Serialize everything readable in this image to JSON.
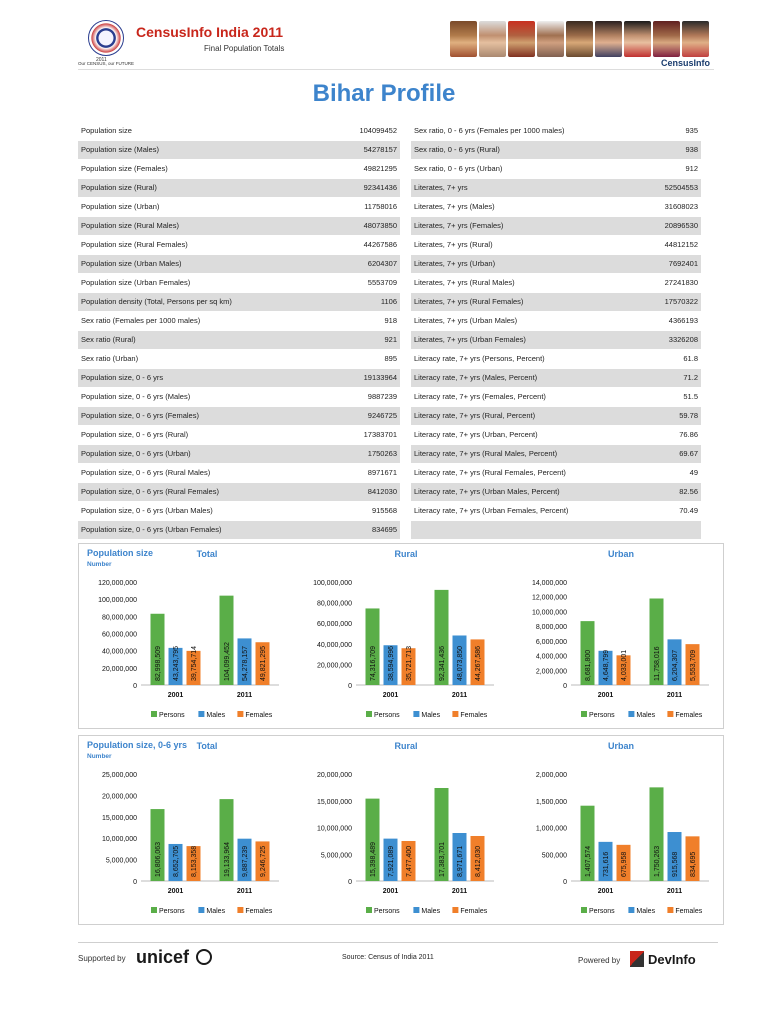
{
  "header": {
    "brand_title": "CensusInfo India 2011",
    "brand_subtitle": "Final Population Totals",
    "seal_year": "2011",
    "seal_tagline": "Our CENSUS, our FUTURE",
    "brand_right": "CensusInfo"
  },
  "page_title": "Bihar Profile",
  "left_table": [
    {
      "label": "Population size",
      "value": "104099452"
    },
    {
      "label": "Population size (Males)",
      "value": "54278157"
    },
    {
      "label": "Population size (Females)",
      "value": "49821295"
    },
    {
      "label": "Population size (Rural)",
      "value": "92341436"
    },
    {
      "label": "Population size (Urban)",
      "value": "11758016"
    },
    {
      "label": "Population size (Rural Males)",
      "value": "48073850"
    },
    {
      "label": "Population size (Rural Females)",
      "value": "44267586"
    },
    {
      "label": "Population size (Urban Males)",
      "value": "6204307"
    },
    {
      "label": "Population size (Urban Females)",
      "value": "5553709"
    },
    {
      "label": "Population density (Total, Persons per sq km)",
      "value": "1106"
    },
    {
      "label": "Sex ratio (Females per 1000 males)",
      "value": "918"
    },
    {
      "label": "Sex ratio (Rural)",
      "value": "921"
    },
    {
      "label": "Sex ratio (Urban)",
      "value": "895"
    },
    {
      "label": "Population size, 0 - 6 yrs",
      "value": "19133964"
    },
    {
      "label": "Population size, 0 - 6 yrs (Males)",
      "value": "9887239"
    },
    {
      "label": "Population size, 0 - 6 yrs (Females)",
      "value": "9246725"
    },
    {
      "label": "Population size, 0 - 6 yrs (Rural)",
      "value": "17383701"
    },
    {
      "label": "Population size, 0 - 6 yrs (Urban)",
      "value": "1750263"
    },
    {
      "label": "Population size, 0 - 6 yrs (Rural Males)",
      "value": "8971671"
    },
    {
      "label": "Population size, 0 - 6 yrs (Rural Females)",
      "value": "8412030"
    },
    {
      "label": "Population size, 0 - 6 yrs (Urban Males)",
      "value": "915568"
    },
    {
      "label": "Population size, 0 - 6 yrs (Urban Females)",
      "value": "834695"
    }
  ],
  "right_table": [
    {
      "label": "Sex ratio, 0 - 6 yrs (Females per 1000 males)",
      "value": "935"
    },
    {
      "label": "Sex ratio, 0 - 6 yrs (Rural)",
      "value": "938"
    },
    {
      "label": "Sex ratio, 0 - 6 yrs (Urban)",
      "value": "912"
    },
    {
      "label": "Literates, 7+ yrs",
      "value": "52504553"
    },
    {
      "label": "Literates, 7+ yrs (Males)",
      "value": "31608023"
    },
    {
      "label": "Literates, 7+ yrs (Females)",
      "value": "20896530"
    },
    {
      "label": "Literates, 7+ yrs (Rural)",
      "value": "44812152"
    },
    {
      "label": "Literates, 7+ yrs (Urban)",
      "value": "7692401"
    },
    {
      "label": "Literates, 7+ yrs (Rural Males)",
      "value": "27241830"
    },
    {
      "label": "Literates, 7+ yrs (Rural Females)",
      "value": "17570322"
    },
    {
      "label": "Literates, 7+ yrs (Urban Males)",
      "value": "4366193"
    },
    {
      "label": "Literates, 7+ yrs (Urban Females)",
      "value": "3326208"
    },
    {
      "label": "Literacy rate, 7+ yrs (Persons, Percent)",
      "value": "61.8"
    },
    {
      "label": "Literacy rate, 7+ yrs (Males, Percent)",
      "value": "71.2"
    },
    {
      "label": "Literacy rate, 7+ yrs (Females, Percent)",
      "value": "51.5"
    },
    {
      "label": "Literacy rate, 7+ yrs (Rural, Percent)",
      "value": "59.78"
    },
    {
      "label": "Literacy rate, 7+ yrs (Urban, Percent)",
      "value": "76.86"
    },
    {
      "label": "Literacy rate, 7+ yrs (Rural Males, Percent)",
      "value": "69.67"
    },
    {
      "label": "Literacy rate, 7+ yrs (Rural Females, Percent)",
      "value": "49"
    },
    {
      "label": "Literacy rate, 7+ yrs (Urban Males, Percent)",
      "value": "82.56"
    },
    {
      "label": "Literacy rate, 7+ yrs (Urban Females, Percent)",
      "value": "70.49"
    },
    {
      "label": "",
      "value": ""
    }
  ],
  "panels": [
    {
      "label": "Population size",
      "sub": "Number"
    },
    {
      "label": "Population size, 0-6 yrs",
      "sub": "Number"
    }
  ],
  "colors": {
    "Persons": "#5aae48",
    "Males": "#3d8fd1",
    "Females": "#f07f2a"
  },
  "chart_data": [
    {
      "type": "bar",
      "title": "Total",
      "categories": [
        "2001",
        "2011"
      ],
      "ylim": [
        0,
        120000000
      ],
      "yticks": [
        "0",
        "20,000,000",
        "40,000,000",
        "60,000,000",
        "80,000,000",
        "100,000,000",
        "120,000,000"
      ],
      "series": [
        {
          "name": "Persons",
          "values": [
            82998509,
            104099452
          ],
          "labels": [
            "82,998,509",
            "104,099,452"
          ]
        },
        {
          "name": "Males",
          "values": [
            43243795,
            54278157
          ],
          "labels": [
            "43,243,795",
            "54,278,157"
          ]
        },
        {
          "name": "Females",
          "values": [
            39754714,
            49821295
          ],
          "labels": [
            "39,754,714",
            "49,821,295"
          ]
        }
      ]
    },
    {
      "type": "bar",
      "title": "Rural",
      "categories": [
        "2001",
        "2011"
      ],
      "ylim": [
        0,
        100000000
      ],
      "yticks": [
        "0",
        "20,000,000",
        "40,000,000",
        "60,000,000",
        "80,000,000",
        "100,000,000"
      ],
      "series": [
        {
          "name": "Persons",
          "values": [
            74316709,
            92341436
          ],
          "labels": [
            "74,316,709",
            "92,341,436"
          ]
        },
        {
          "name": "Males",
          "values": [
            38594996,
            48073850
          ],
          "labels": [
            "38,594,996",
            "48,073,850"
          ]
        },
        {
          "name": "Females",
          "values": [
            35721713,
            44267586
          ],
          "labels": [
            "35,721,713",
            "44,267,586"
          ]
        }
      ]
    },
    {
      "type": "bar",
      "title": "Urban",
      "categories": [
        "2001",
        "2011"
      ],
      "ylim": [
        0,
        14000000
      ],
      "yticks": [
        "0",
        "2,000,000",
        "4,000,000",
        "6,000,000",
        "8,000,000",
        "10,000,000",
        "12,000,000",
        "14,000,000"
      ],
      "series": [
        {
          "name": "Persons",
          "values": [
            8681800,
            11758016
          ],
          "labels": [
            "8,681,800",
            "11,758,016"
          ]
        },
        {
          "name": "Males",
          "values": [
            4648799,
            6204307
          ],
          "labels": [
            "4,648,799",
            "6,204,307"
          ]
        },
        {
          "name": "Females",
          "values": [
            4033001,
            5553709
          ],
          "labels": [
            "4,033,001",
            "5,553,709"
          ]
        }
      ]
    },
    {
      "type": "bar",
      "title": "Total",
      "categories": [
        "2001",
        "2011"
      ],
      "ylim": [
        0,
        25000000
      ],
      "yticks": [
        "0",
        "5,000,000",
        "10,000,000",
        "15,000,000",
        "20,000,000",
        "25,000,000"
      ],
      "series": [
        {
          "name": "Persons",
          "values": [
            16806063,
            19133964
          ],
          "labels": [
            "16,806,063",
            "19,133,964"
          ]
        },
        {
          "name": "Males",
          "values": [
            8652705,
            9887239
          ],
          "labels": [
            "8,652,705",
            "9,887,239"
          ]
        },
        {
          "name": "Females",
          "values": [
            8153358,
            9246725
          ],
          "labels": [
            "8,153,358",
            "9,246,725"
          ]
        }
      ]
    },
    {
      "type": "bar",
      "title": "Rural",
      "categories": [
        "2001",
        "2011"
      ],
      "ylim": [
        0,
        20000000
      ],
      "yticks": [
        "0",
        "5,000,000",
        "10,000,000",
        "15,000,000",
        "20,000,000"
      ],
      "series": [
        {
          "name": "Persons",
          "values": [
            15398489,
            17383701
          ],
          "labels": [
            "15,398,489",
            "17,383,701"
          ]
        },
        {
          "name": "Males",
          "values": [
            7921089,
            8971671
          ],
          "labels": [
            "7,921,089",
            "8,971,671"
          ]
        },
        {
          "name": "Females",
          "values": [
            7477400,
            8412030
          ],
          "labels": [
            "7,477,400",
            "8,412,030"
          ]
        }
      ]
    },
    {
      "type": "bar",
      "title": "Urban",
      "categories": [
        "2001",
        "2011"
      ],
      "ylim": [
        0,
        2000000
      ],
      "yticks": [
        "0",
        "500,000",
        "1,000,000",
        "1,500,000",
        "2,000,000"
      ],
      "series": [
        {
          "name": "Persons",
          "values": [
            1407574,
            1750263
          ],
          "labels": [
            "1,407,574",
            "1,750,263"
          ]
        },
        {
          "name": "Males",
          "values": [
            731616,
            915568
          ],
          "labels": [
            "731,616",
            "915,568"
          ]
        },
        {
          "name": "Females",
          "values": [
            675958,
            834695
          ],
          "labels": [
            "675,958",
            "834,695"
          ]
        }
      ]
    }
  ],
  "footer": {
    "supported_by": "Supported by",
    "unicef": "unicef",
    "source": "Source: Census of India 2011",
    "powered_by": "Powered by",
    "devinfo": "DevInfo"
  }
}
